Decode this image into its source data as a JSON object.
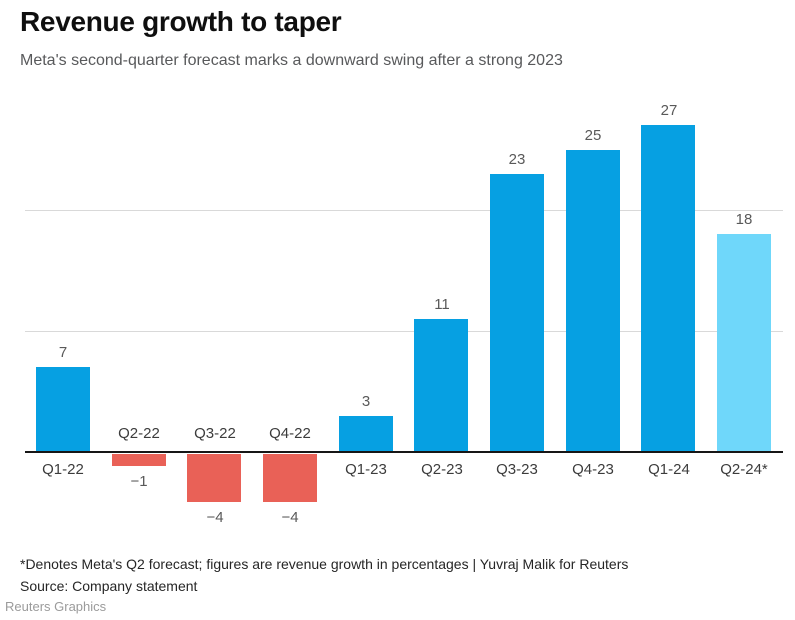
{
  "header": {
    "title": "Revenue growth to taper",
    "subtitle": "Meta's second-quarter forecast marks a downward swing after a strong 2023"
  },
  "chart_data": {
    "type": "bar",
    "categories": [
      "Q1-22",
      "Q2-22",
      "Q3-22",
      "Q4-22",
      "Q1-23",
      "Q2-23",
      "Q3-23",
      "Q4-23",
      "Q1-24",
      "Q2-24*"
    ],
    "values": [
      7,
      -1,
      -4,
      -4,
      3,
      11,
      23,
      25,
      27,
      18
    ],
    "labels": [
      "7",
      "−1",
      "−4",
      "−4",
      "3",
      "11",
      "23",
      "25",
      "27",
      "18"
    ],
    "bar_colors": [
      "#06a0e2",
      "#e96157",
      "#e96157",
      "#e96157",
      "#06a0e2",
      "#06a0e2",
      "#06a0e2",
      "#06a0e2",
      "#06a0e2",
      "#6fd7fa"
    ],
    "colors": {
      "actual": "#06a0e2",
      "negative": "#e96157",
      "forecast": "#6fd7fa",
      "gridline": "#d9d9d9",
      "axis": "#161616"
    },
    "yticks": [
      10,
      20
    ],
    "ylim": [
      -6,
      29
    ],
    "grid": "horizontal",
    "legend": "none",
    "title": "Revenue growth to taper",
    "xlabel": "",
    "ylabel": ""
  },
  "footer": {
    "note": "*Denotes Meta's Q2 forecast; figures are revenue growth in percentages | Yuvraj Malik for Reuters",
    "source": "Source: Company statement",
    "credit": "Reuters Graphics"
  }
}
